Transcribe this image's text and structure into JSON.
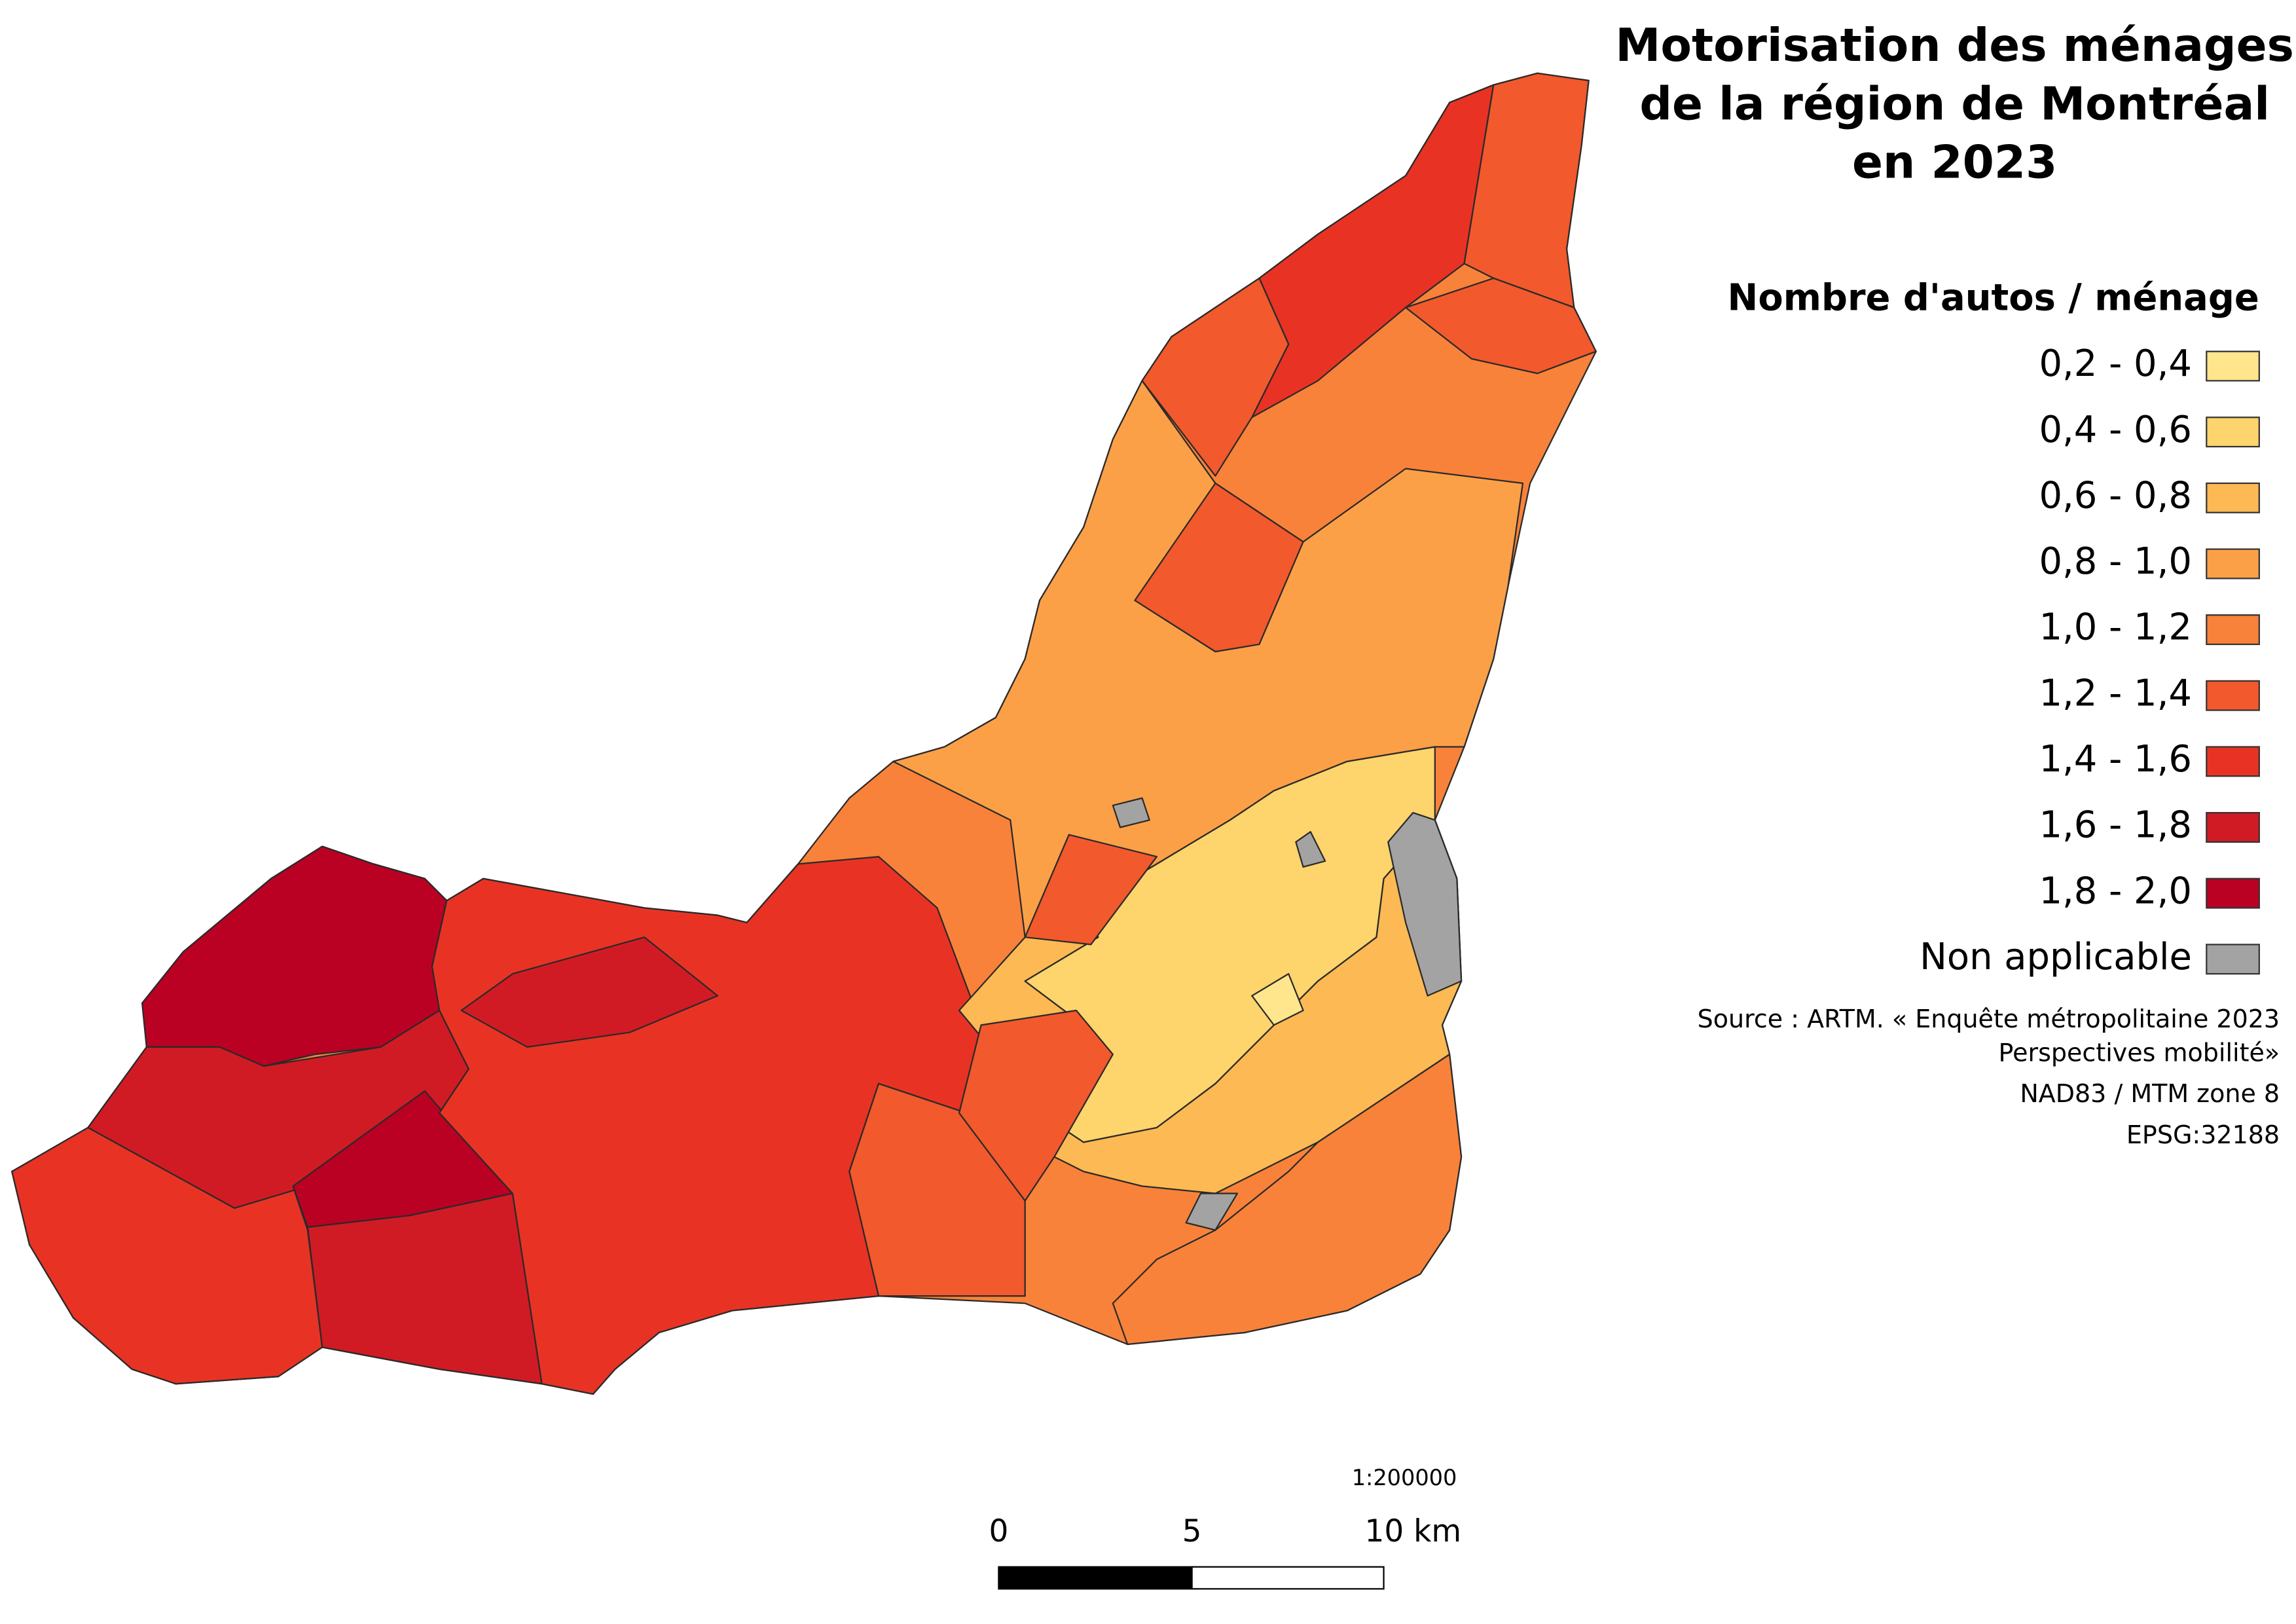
{
  "title_lines": [
    "Motorisation des ménages",
    "de la région de Montréal",
    "en 2023"
  ],
  "legend": {
    "title": "Nombre d'autos / ménage",
    "items": [
      {
        "label": "0,2 - 0,4",
        "color": "#ffe68c"
      },
      {
        "label": "0,4 - 0,6",
        "color": "#fed46c"
      },
      {
        "label": "0,6 - 0,8",
        "color": "#fdb954"
      },
      {
        "label": "0,8 - 1,0",
        "color": "#fca048"
      },
      {
        "label": "1,0 - 1,2",
        "color": "#f8823a"
      },
      {
        "label": "1,2 - 1,4",
        "color": "#f2592c"
      },
      {
        "label": "1,4 - 1,6",
        "color": "#e83324"
      },
      {
        "label": "1,6 - 1,8",
        "color": "#d11b24"
      },
      {
        "label": "1,8 - 2,0",
        "color": "#bb0123"
      },
      {
        "label": "Non applicable",
        "color": "#a3a3a3"
      }
    ]
  },
  "source": [
    "Source : ARTM. « Enquête métropolitaine 2023",
    "Perspectives mobilité»",
    "NAD83 / MTM zone 8",
    "EPSG:32188"
  ],
  "scale_bar": {
    "ratio": "1:200000",
    "labels": [
      "0",
      "5",
      "10 km"
    ]
  }
}
